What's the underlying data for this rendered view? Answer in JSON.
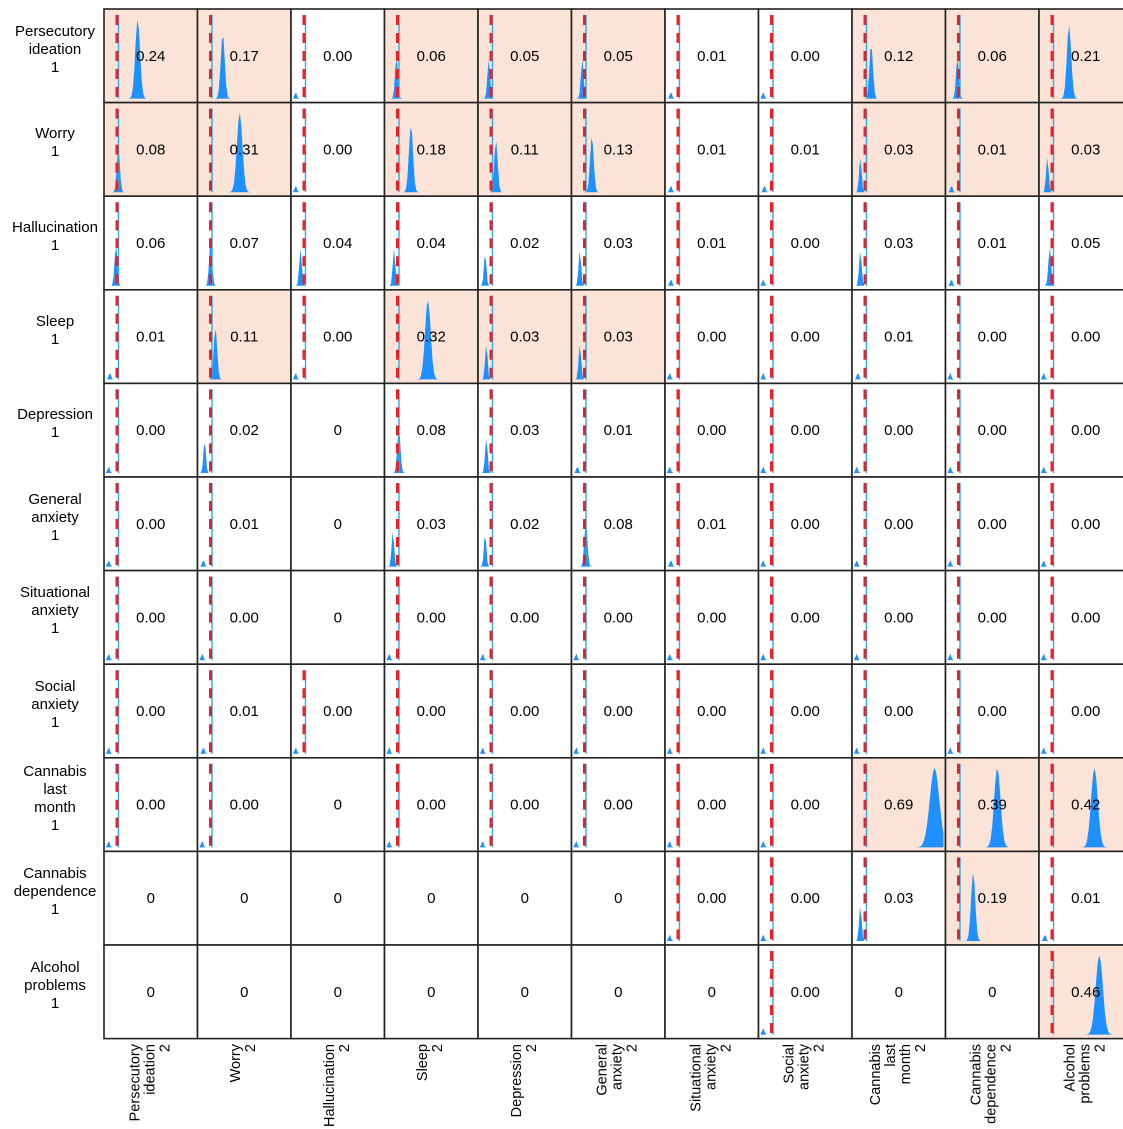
{
  "chart_data": {
    "type": "heatmap",
    "row_variables": [
      [
        "Persecutory",
        "ideation",
        "1"
      ],
      [
        "Worry",
        "1"
      ],
      [
        "Hallucination",
        "1"
      ],
      [
        "Sleep",
        "1"
      ],
      [
        "Depression",
        "1"
      ],
      [
        "General",
        "anxiety",
        "1"
      ],
      [
        "Situational",
        "anxiety",
        "1"
      ],
      [
        "Social",
        "anxiety",
        "1"
      ],
      [
        "Cannabis",
        "last",
        "month",
        "1"
      ],
      [
        "Cannabis",
        "dependence",
        "1"
      ],
      [
        "Alcohol",
        "problems",
        "1"
      ]
    ],
    "column_variables": [
      [
        "Persecutory",
        "ideation",
        "2"
      ],
      [
        "Worry",
        "2"
      ],
      [
        "Hallucination",
        "2"
      ],
      [
        "Sleep",
        "2"
      ],
      [
        "Depression",
        "2"
      ],
      [
        "General",
        "anxiety",
        "2"
      ],
      [
        "Situational",
        "anxiety",
        "2"
      ],
      [
        "Social",
        "anxiety",
        "2"
      ],
      [
        "Cannabis",
        "last",
        "month",
        "2"
      ],
      [
        "Cannabis",
        "dependence",
        "2"
      ],
      [
        "Alcohol",
        "problems",
        "2"
      ]
    ],
    "cell_labels": [
      [
        "0.24",
        "0.17",
        "0.00",
        "0.06",
        "0.05",
        "0.05",
        "0.01",
        "0.00",
        "0.12",
        "0.06",
        "0.21"
      ],
      [
        "0.08",
        "0.31",
        "0.00",
        "0.18",
        "0.11",
        "0.13",
        "0.01",
        "0.01",
        "0.03",
        "0.01",
        "0.03"
      ],
      [
        "0.06",
        "0.07",
        "0.04",
        "0.04",
        "0.02",
        "0.03",
        "0.01",
        "0.00",
        "0.03",
        "0.01",
        "0.05"
      ],
      [
        "0.01",
        "0.11",
        "0.00",
        "0.32",
        "0.03",
        "0.03",
        "0.00",
        "0.00",
        "0.01",
        "0.00",
        "0.00"
      ],
      [
        "0.00",
        "0.02",
        "0",
        "0.08",
        "0.03",
        "0.01",
        "0.00",
        "0.00",
        "0.00",
        "0.00",
        "0.00"
      ],
      [
        "0.00",
        "0.01",
        "0",
        "0.03",
        "0.02",
        "0.08",
        "0.01",
        "0.00",
        "0.00",
        "0.00",
        "0.00"
      ],
      [
        "0.00",
        "0.00",
        "0",
        "0.00",
        "0.00",
        "0.00",
        "0.00",
        "0.00",
        "0.00",
        "0.00",
        "0.00"
      ],
      [
        "0.00",
        "0.01",
        "0.00",
        "0.00",
        "0.00",
        "0.00",
        "0.00",
        "0.00",
        "0.00",
        "0.00",
        "0.00"
      ],
      [
        "0.00",
        "0.00",
        "0",
        "0.00",
        "0.00",
        "0.00",
        "0.00",
        "0.00",
        "0.69",
        "0.39",
        "0.42"
      ],
      [
        "0",
        "0",
        "0",
        "0",
        "0",
        "0",
        "0.00",
        "0.00",
        "0.03",
        "0.19",
        "0.01"
      ],
      [
        "0",
        "0",
        "0",
        "0",
        "0",
        "0",
        "0",
        "0.00",
        "0",
        "0",
        "0.46"
      ]
    ],
    "highlighted": [
      [
        1,
        1,
        0,
        1,
        1,
        1,
        0,
        0,
        1,
        1,
        1
      ],
      [
        1,
        1,
        0,
        1,
        1,
        1,
        0,
        0,
        1,
        1,
        1
      ],
      [
        0,
        0,
        0,
        0,
        0,
        0,
        0,
        0,
        0,
        0,
        0
      ],
      [
        0,
        1,
        0,
        1,
        1,
        1,
        0,
        0,
        0,
        0,
        0
      ],
      [
        0,
        0,
        0,
        0,
        0,
        0,
        0,
        0,
        0,
        0,
        0
      ],
      [
        0,
        0,
        0,
        0,
        0,
        0,
        0,
        0,
        0,
        0,
        0
      ],
      [
        0,
        0,
        0,
        0,
        0,
        0,
        0,
        0,
        0,
        0,
        0
      ],
      [
        0,
        0,
        0,
        0,
        0,
        0,
        0,
        0,
        0,
        0,
        0
      ],
      [
        0,
        0,
        0,
        0,
        0,
        0,
        0,
        0,
        1,
        1,
        1
      ],
      [
        0,
        0,
        0,
        0,
        0,
        0,
        0,
        0,
        0,
        1,
        0
      ],
      [
        0,
        0,
        0,
        0,
        0,
        0,
        0,
        0,
        0,
        0,
        1
      ]
    ],
    "colors": {
      "highlight_fill": "#fbe3d8",
      "density_fill": "#1e90ff",
      "zero_line": "#e2232b",
      "zero_dash_line": "#36a9e1",
      "grid_border": "#222222"
    }
  }
}
